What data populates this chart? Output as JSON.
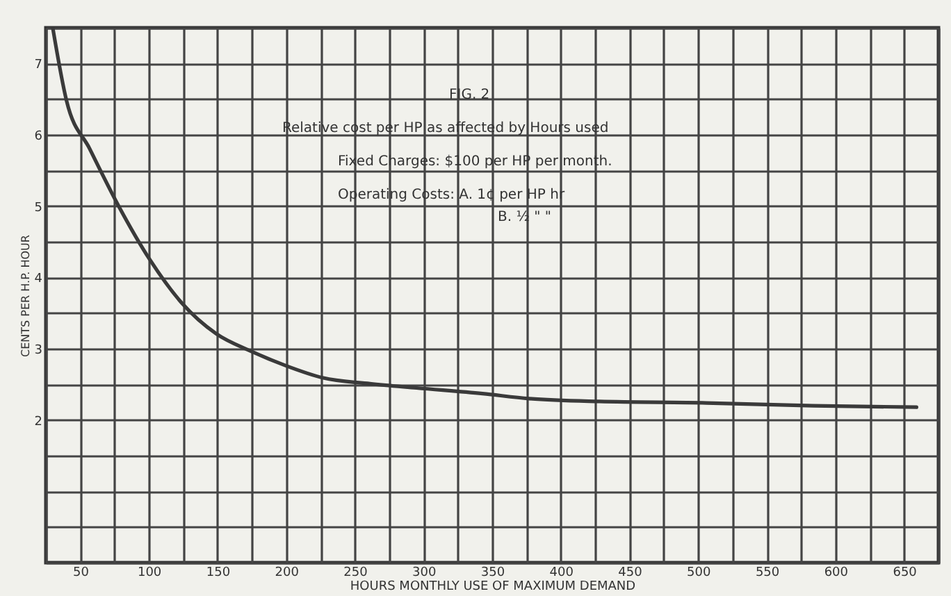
{
  "chart_data": {
    "type": "line",
    "xlabel": "HOURS MONTHLY USE OF MAXIMUM DEMAND",
    "ylabel": "CENTS PER H.P. HOUR",
    "annotations": [
      "FIG. 2",
      "Relative cost per HP as affected by Hours used",
      "Fixed Charges: $100 per HP per month.",
      "Operating Costs: A. 1¢ per HP hr",
      "B. ½ \" \""
    ],
    "x": [
      30,
      40,
      57,
      78,
      101,
      124,
      149,
      175,
      200,
      227,
      261,
      295,
      343,
      377,
      428,
      506,
      584,
      659
    ],
    "series": [
      {
        "color": "#3a3a3a",
        "values": [
          7.5,
          6.48,
          5.8,
          5.0,
          4.24,
          3.64,
          3.21,
          2.96,
          2.76,
          2.59,
          2.51,
          2.45,
          2.37,
          2.3,
          2.26,
          2.24,
          2.2,
          2.18
        ]
      }
    ],
    "xlim": [
      25,
      675
    ],
    "xticks": [
      {
        "value": 25,
        "label": null
      },
      50,
      {
        "value": 75,
        "label": null
      },
      100,
      {
        "value": 125,
        "label": null
      },
      150,
      {
        "value": 175,
        "label": null
      },
      200,
      {
        "value": 225,
        "label": null
      },
      250,
      {
        "value": 275,
        "label": null
      },
      300,
      {
        "value": 325,
        "label": null
      },
      350,
      {
        "value": 375,
        "label": null
      },
      400,
      {
        "value": 425,
        "label": null
      },
      450,
      {
        "value": 475,
        "label": null
      },
      500,
      {
        "value": 525,
        "label": null
      },
      550,
      {
        "value": 575,
        "label": null
      },
      600,
      {
        "value": 625,
        "label": null
      },
      650,
      {
        "value": 675,
        "label": null
      }
    ],
    "ylim": [
      0,
      7.5
    ],
    "yticks": [
      {
        "value": 0,
        "label": null
      },
      {
        "value": 0.5,
        "label": null
      },
      {
        "value": 1,
        "label": null
      },
      {
        "value": 1.5,
        "label": null
      },
      2,
      {
        "value": 2.5,
        "label": null
      },
      3,
      {
        "value": 3.5,
        "label": null
      },
      4,
      {
        "value": 4.5,
        "label": null
      },
      5,
      {
        "value": 5.5,
        "label": null
      },
      6,
      {
        "value": 6.5,
        "label": null
      },
      7,
      {
        "value": 7.5,
        "label": null
      }
    ],
    "grid": true,
    "line_style": "solid"
  }
}
